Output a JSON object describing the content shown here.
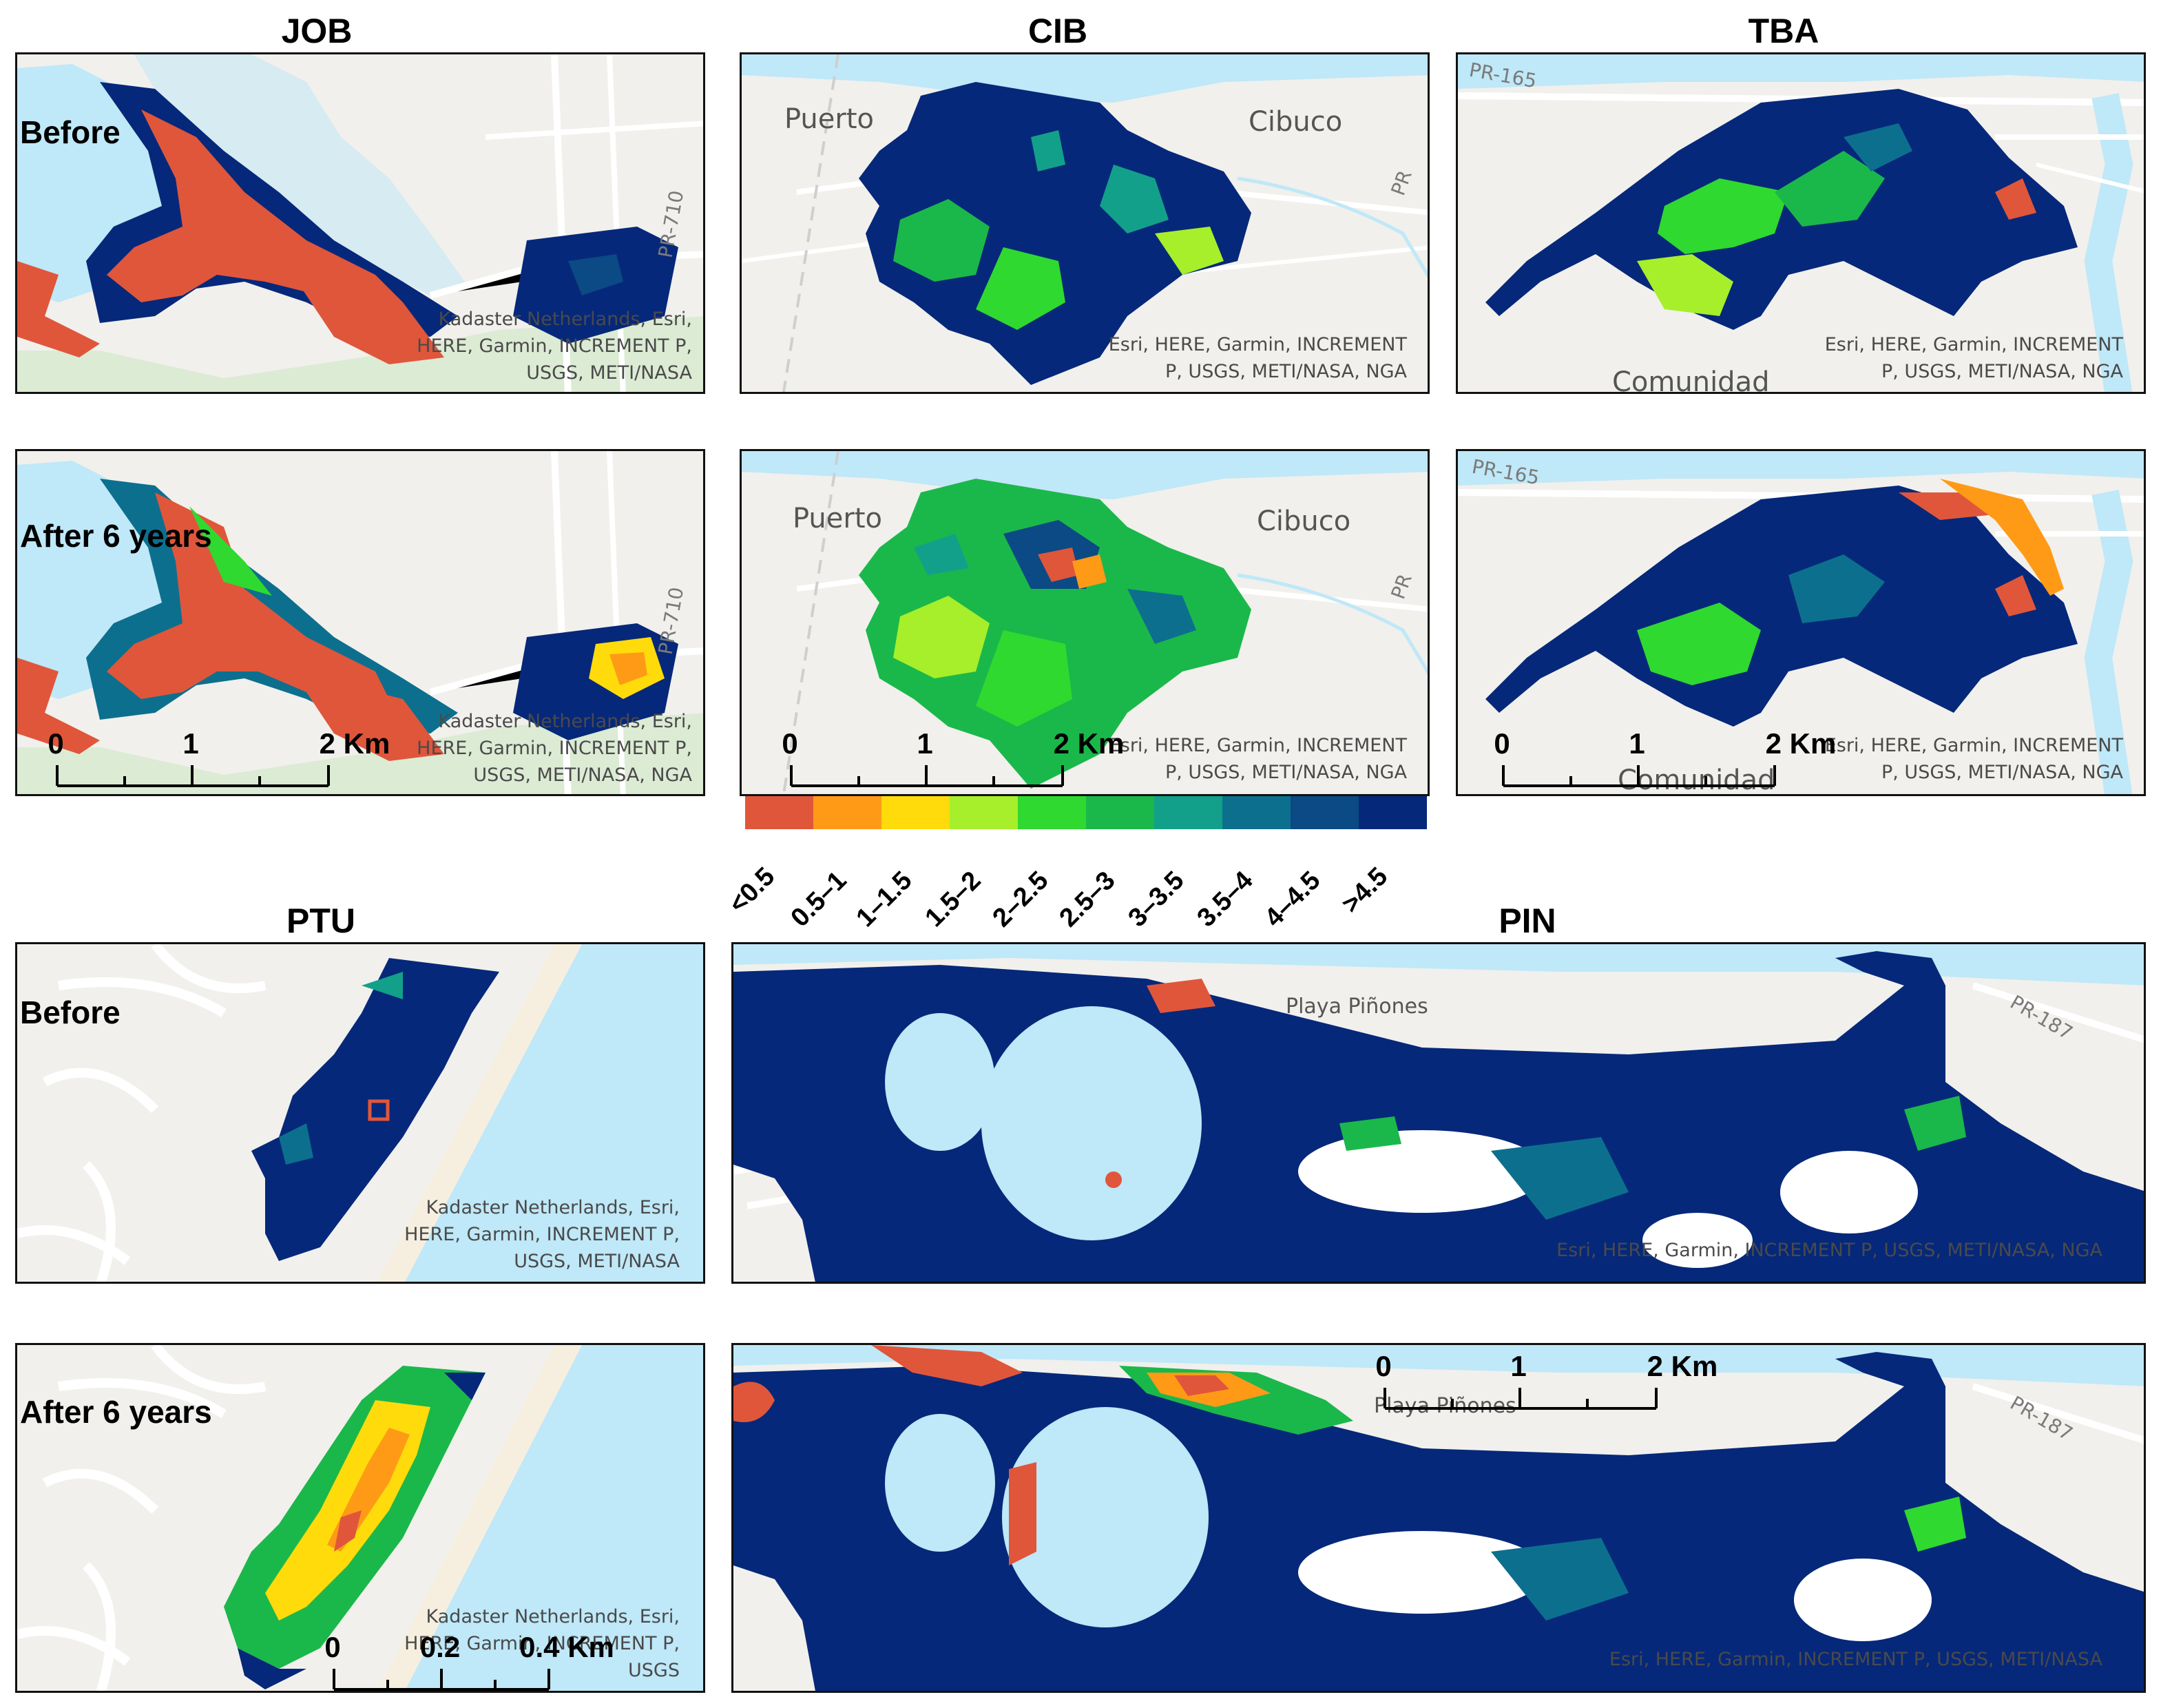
{
  "legend": {
    "classes": [
      {
        "label": "<0.5",
        "color": "#e0563b"
      },
      {
        "label": "0.5–1",
        "color": "#ff9a17"
      },
      {
        "label": "1–1.5",
        "color": "#ffdb0b"
      },
      {
        "label": "1.5–2",
        "color": "#a6ef2a"
      },
      {
        "label": "2–2.5",
        "color": "#2fd92f"
      },
      {
        "label": "2.5–3",
        "color": "#1ab84a"
      },
      {
        "label": "3–3.5",
        "color": "#12a08a"
      },
      {
        "label": "3.5–4",
        "color": "#0d6f8e"
      },
      {
        "label": "4–4.5",
        "color": "#0b4a84"
      },
      {
        "label": ">4.5",
        "color": "#06287a"
      }
    ]
  },
  "colors": {
    "water": "#bfe8f8",
    "land": "#f1f0ec",
    "vegetation": "#dcebd4",
    "road": "#ffffff"
  },
  "sites": {
    "job": {
      "title": "JOB",
      "before": {
        "period": "Before",
        "attribution": [
          "Kadaster Netherlands, Esri,",
          "HERE, Garmin, INCREMENT P,",
          "USGS, METI/NASA"
        ],
        "roads": [
          "PR-710"
        ]
      },
      "after": {
        "period": "After 6 years",
        "attribution": [
          "Kadaster Netherlands, Esri,",
          "HERE, Garmin, INCREMENT P,",
          "USGS, METI/NASA, NGA"
        ],
        "roads": [
          "PR-710"
        ]
      },
      "scale": {
        "ticks": [
          "0",
          "1",
          "2 Km"
        ]
      }
    },
    "cib": {
      "title": "CIB",
      "before": {
        "attribution": [
          "Esri, HERE, Garmin, INCREMENT",
          "P, USGS, METI/NASA, NGA"
        ],
        "places": [
          "Puerto",
          "Cibuco"
        ],
        "roads": [
          "PR"
        ]
      },
      "after": {
        "attribution": [
          "Esri, HERE, Garmin, INCREMENT",
          "P, USGS, METI/NASA, NGA"
        ],
        "places": [
          "Puerto",
          "Cibuco"
        ],
        "roads": [
          "PR"
        ]
      },
      "scale": {
        "ticks": [
          "0",
          "1",
          "2 Km"
        ]
      }
    },
    "tba": {
      "title": "TBA",
      "before": {
        "attribution": [
          "Esri, HERE, Garmin, INCREMENT",
          "P, USGS, METI/NASA, NGA"
        ],
        "places": [
          "Comunidad"
        ],
        "roads": [
          "PR-165"
        ]
      },
      "after": {
        "attribution": [
          "Esri, HERE, Garmin, INCREMENT",
          "P, USGS, METI/NASA, NGA"
        ],
        "places": [
          "Comunidad"
        ],
        "roads": [
          "PR-165"
        ]
      },
      "scale": {
        "ticks": [
          "0",
          "1",
          "2 Km"
        ]
      }
    },
    "ptu": {
      "title": "PTU",
      "before": {
        "period": "Before",
        "attribution": [
          "Kadaster Netherlands, Esri,",
          "HERE, Garmin, INCREMENT P,",
          "USGS, METI/NASA"
        ]
      },
      "after": {
        "period": "After 6 years",
        "attribution": [
          "Kadaster Netherlands, Esri,",
          "HERE, Garmin, INCREMENT P,",
          "USGS"
        ]
      },
      "scale": {
        "ticks": [
          "0",
          "0.2",
          "0.4 Km"
        ]
      }
    },
    "pin": {
      "title": "PIN",
      "before": {
        "attribution": [
          "Esri, HERE, Garmin, INCREMENT P, USGS, METI/NASA, NGA"
        ],
        "places": [
          "Playa Piñones"
        ],
        "roads": [
          "PR-187"
        ]
      },
      "after": {
        "attribution": [
          "Esri, HERE, Garmin, INCREMENT P, USGS, METI/NASA"
        ],
        "places": [
          "Playa Piñones"
        ],
        "roads": [
          "PR-187"
        ]
      },
      "scale": {
        "ticks": [
          "0",
          "1",
          "2 Km"
        ]
      }
    }
  }
}
